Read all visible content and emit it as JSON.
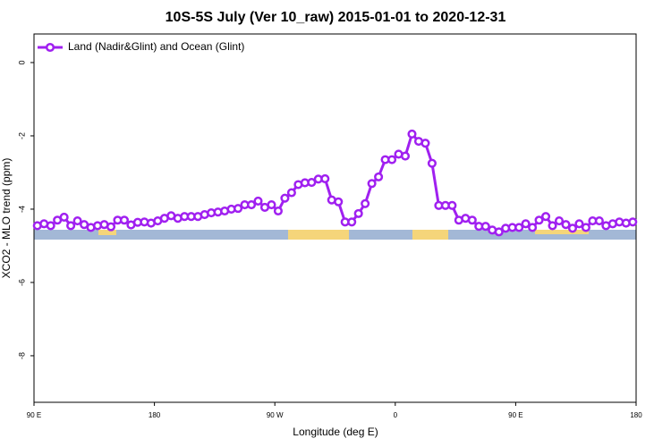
{
  "chart_data": {
    "type": "line",
    "title": "10S-5S July (Ver 10_raw)   2015-01-01 to 2020-12-31",
    "xlabel": "Longitude (deg E)",
    "ylabel": "XCO2 - MLO trend (ppm)",
    "x": [
      92.5,
      97.5,
      102.5,
      107.5,
      112.5,
      117.5,
      122.5,
      127.5,
      132.5,
      137.5,
      142.5,
      147.5,
      152.5,
      157.5,
      162.5,
      167.5,
      172.5,
      177.5,
      182.5,
      187.5,
      192.5,
      197.5,
      202.5,
      207.5,
      212.5,
      217.5,
      222.5,
      227.5,
      232.5,
      237.5,
      242.5,
      247.5,
      252.5,
      257.5,
      262.5,
      267.5,
      272.5,
      277.5,
      282.5,
      287.5,
      292.5,
      297.5,
      302.5,
      307.5,
      312.5,
      317.5,
      322.5,
      327.5,
      332.5,
      337.5,
      342.5,
      347.5,
      352.5,
      357.5,
      362.5,
      367.5,
      372.5,
      377.5,
      382.5,
      387.5,
      392.5,
      397.5,
      402.5,
      407.5,
      412.5,
      417.5,
      422.5,
      427.5,
      432.5,
      437.5,
      442.5,
      447.5,
      452.5,
      457.5,
      462.5,
      467.5,
      472.5,
      477.5,
      482.5,
      487.5,
      492.5,
      497.5,
      502.5,
      507.5,
      512.5,
      517.5,
      522.5,
      527.5,
      532.5,
      537.5
    ],
    "series": [
      {
        "name": "Land (Nadir&Glint) and Ocean (Glint)",
        "color": "#a020f0",
        "values": [
          -4.45,
          -4.4,
          -4.45,
          -4.3,
          -4.22,
          -4.45,
          -4.32,
          -4.42,
          -4.5,
          -4.45,
          -4.42,
          -4.48,
          -4.3,
          -4.3,
          -4.43,
          -4.36,
          -4.35,
          -4.38,
          -4.32,
          -4.25,
          -4.18,
          -4.25,
          -4.2,
          -4.2,
          -4.2,
          -4.15,
          -4.1,
          -4.08,
          -4.05,
          -4.0,
          -3.98,
          -3.88,
          -3.88,
          -3.78,
          -3.95,
          -3.88,
          -4.05,
          -3.7,
          -3.55,
          -3.33,
          -3.28,
          -3.27,
          -3.18,
          -3.17,
          -3.75,
          -3.8,
          -4.35,
          -4.35,
          -4.12,
          -3.85,
          -3.3,
          -3.12,
          -2.65,
          -2.65,
          -2.5,
          -2.55,
          -1.95,
          -2.15,
          -2.2,
          -2.75,
          -3.9,
          -3.9,
          -3.9,
          -4.3,
          -4.25,
          -4.3,
          -4.47,
          -4.47,
          -4.57,
          -4.62,
          -4.52,
          -4.5,
          -4.5,
          -4.4,
          -4.5,
          -4.3,
          -4.2,
          -4.45,
          -4.32,
          -4.42,
          -4.52,
          -4.4,
          -4.5,
          -4.32,
          -4.32,
          -4.45,
          -4.4,
          -4.35,
          -4.38,
          -4.35
        ]
      }
    ],
    "xlim": [
      90,
      540
    ],
    "xticks": [
      {
        "value": 90,
        "label": "90 E"
      },
      180,
      {
        "value": 270,
        "label": "90 W"
      },
      {
        "value": 360,
        "label": "0"
      },
      {
        "value": 450,
        "label": "90 E"
      },
      {
        "value": 540,
        "label": "180"
      }
    ],
    "ylim": [
      -9.27,
      0.78
    ],
    "yticks": [
      0,
      -2,
      -4,
      -6,
      -8
    ],
    "legend": "top-left",
    "grid": false
  }
}
